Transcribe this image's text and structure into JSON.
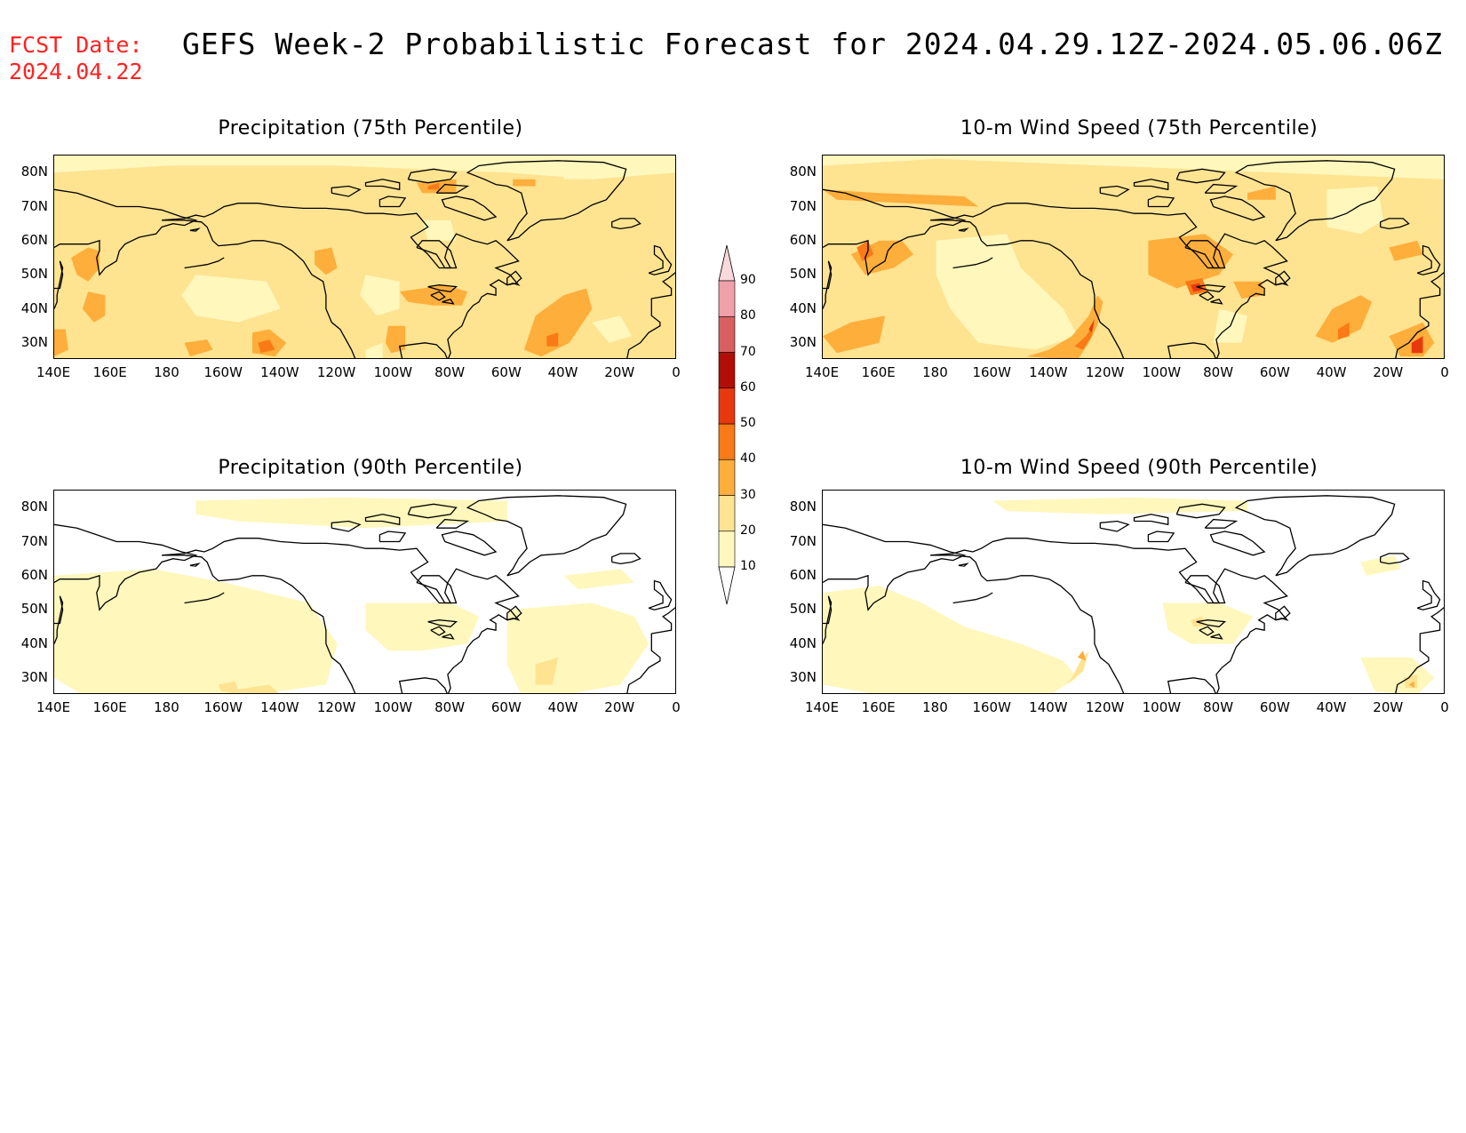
{
  "header": {
    "fcst_label": "FCST Date:",
    "fcst_date": "2024.04.22",
    "title": "GEFS Week-2 Probabilistic Forecast for 2024.04.29.12Z-2024.05.06.06Z"
  },
  "panels": [
    {
      "id": "precip-75",
      "title": "Precipitation (75th Percentile)",
      "level": "p75"
    },
    {
      "id": "wind-75",
      "title": "10-m Wind Speed (75th Percentile)",
      "level": "w75"
    },
    {
      "id": "precip-90",
      "title": "Precipitation (90th Percentile)",
      "level": "p90"
    },
    {
      "id": "wind-90",
      "title": "10-m Wind Speed (90th Percentile)",
      "level": "w90"
    }
  ],
  "axes": {
    "x_ticks": [
      "140E",
      "160E",
      "180",
      "160W",
      "140W",
      "120W",
      "100W",
      "80W",
      "60W",
      "40W",
      "20W",
      "0"
    ],
    "y_ticks": [
      "80N",
      "70N",
      "60N",
      "50N",
      "40N",
      "30N"
    ],
    "lon_range": [
      140,
      360
    ],
    "lat_range": [
      25,
      85
    ]
  },
  "colorbar": {
    "levels": [
      "10",
      "20",
      "30",
      "40",
      "50",
      "60",
      "70",
      "80",
      "90"
    ],
    "colors": [
      "#fff7bc",
      "#fee391",
      "#fdae3b",
      "#f97a16",
      "#e8390e",
      "#b10e06",
      "#d96060",
      "#f0a0a8",
      "#fbd8dc"
    ]
  }
}
